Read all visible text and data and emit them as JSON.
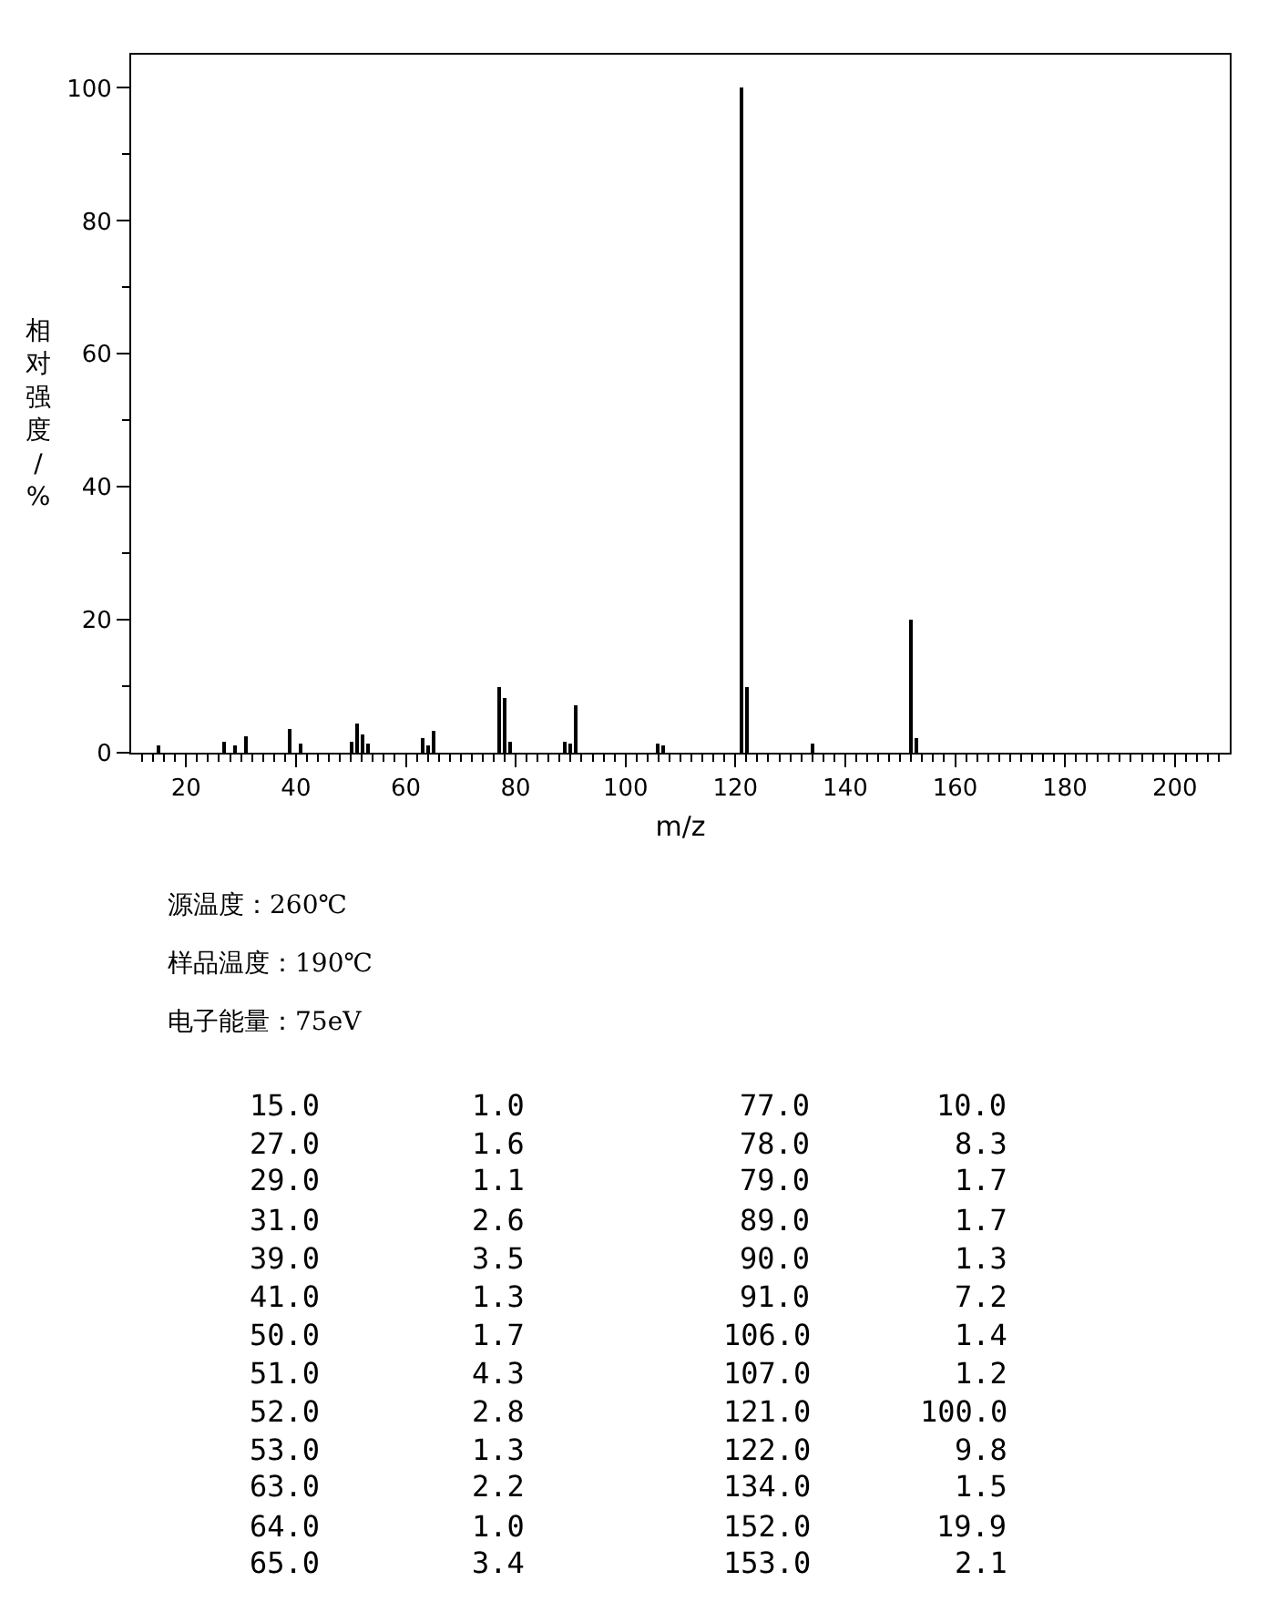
{
  "chart_data": {
    "type": "bar",
    "x": [
      15,
      27,
      29,
      31,
      39,
      41,
      50,
      51,
      52,
      53,
      63,
      64,
      65,
      77,
      78,
      79,
      89,
      90,
      91,
      106,
      107,
      121,
      122,
      134,
      152,
      153
    ],
    "values": [
      1.0,
      1.6,
      1.1,
      2.6,
      3.5,
      1.3,
      1.7,
      4.3,
      2.8,
      1.3,
      2.2,
      1.0,
      3.4,
      10.0,
      8.3,
      1.7,
      1.7,
      1.3,
      7.2,
      1.4,
      1.2,
      100.0,
      9.8,
      1.5,
      19.9,
      2.1
    ],
    "color": "#000000",
    "xlabel": "m/z",
    "ylabel": "相对强度/%",
    "xlim": [
      10,
      210
    ],
    "ylim": [
      0,
      105
    ],
    "xticks": [
      20,
      40,
      60,
      80,
      100,
      120,
      140,
      160,
      180,
      200,
      {
        "value": 12,
        "label": null
      },
      {
        "value": 14,
        "label": null
      },
      {
        "value": 16,
        "label": null
      },
      {
        "value": 18,
        "label": null
      },
      {
        "value": 22,
        "label": null
      },
      {
        "value": 24,
        "label": null
      },
      {
        "value": 26,
        "label": null
      },
      {
        "value": 28,
        "label": null
      },
      {
        "value": 30,
        "label": null
      },
      {
        "value": 32,
        "label": null
      },
      {
        "value": 34,
        "label": null
      },
      {
        "value": 36,
        "label": null
      },
      {
        "value": 38,
        "label": null
      },
      {
        "value": 42,
        "label": null
      },
      {
        "value": 44,
        "label": null
      },
      {
        "value": 46,
        "label": null
      },
      {
        "value": 48,
        "label": null
      },
      {
        "value": 50,
        "label": null
      },
      {
        "value": 52,
        "label": null
      },
      {
        "value": 54,
        "label": null
      },
      {
        "value": 56,
        "label": null
      },
      {
        "value": 58,
        "label": null
      },
      {
        "value": 62,
        "label": null
      },
      {
        "value": 64,
        "label": null
      },
      {
        "value": 66,
        "label": null
      },
      {
        "value": 68,
        "label": null
      },
      {
        "value": 70,
        "label": null
      },
      {
        "value": 72,
        "label": null
      },
      {
        "value": 74,
        "label": null
      },
      {
        "value": 76,
        "label": null
      },
      {
        "value": 78,
        "label": null
      },
      {
        "value": 82,
        "label": null
      },
      {
        "value": 84,
        "label": null
      },
      {
        "value": 86,
        "label": null
      },
      {
        "value": 88,
        "label": null
      },
      {
        "value": 90,
        "label": null
      },
      {
        "value": 92,
        "label": null
      },
      {
        "value": 94,
        "label": null
      },
      {
        "value": 96,
        "label": null
      },
      {
        "value": 98,
        "label": null
      },
      {
        "value": 102,
        "label": null
      },
      {
        "value": 104,
        "label": null
      },
      {
        "value": 106,
        "label": null
      },
      {
        "value": 108,
        "label": null
      },
      {
        "value": 110,
        "label": null
      },
      {
        "value": 112,
        "label": null
      },
      {
        "value": 114,
        "label": null
      },
      {
        "value": 116,
        "label": null
      },
      {
        "value": 118,
        "label": null
      },
      {
        "value": 122,
        "label": null
      },
      {
        "value": 124,
        "label": null
      },
      {
        "value": 126,
        "label": null
      },
      {
        "value": 128,
        "label": null
      },
      {
        "value": 130,
        "label": null
      },
      {
        "value": 132,
        "label": null
      },
      {
        "value": 134,
        "label": null
      },
      {
        "value": 136,
        "label": null
      },
      {
        "value": 138,
        "label": null
      },
      {
        "value": 142,
        "label": null
      },
      {
        "value": 144,
        "label": null
      },
      {
        "value": 146,
        "label": null
      },
      {
        "value": 148,
        "label": null
      },
      {
        "value": 150,
        "label": null
      },
      {
        "value": 152,
        "label": null
      },
      {
        "value": 154,
        "label": null
      },
      {
        "value": 156,
        "label": null
      },
      {
        "value": 158,
        "label": null
      },
      {
        "value": 162,
        "label": null
      },
      {
        "value": 164,
        "label": null
      },
      {
        "value": 166,
        "label": null
      },
      {
        "value": 168,
        "label": null
      },
      {
        "value": 170,
        "label": null
      },
      {
        "value": 172,
        "label": null
      },
      {
        "value": 174,
        "label": null
      },
      {
        "value": 176,
        "label": null
      },
      {
        "value": 178,
        "label": null
      },
      {
        "value": 182,
        "label": null
      },
      {
        "value": 184,
        "label": null
      },
      {
        "value": 186,
        "label": null
      },
      {
        "value": 188,
        "label": null
      },
      {
        "value": 190,
        "label": null
      },
      {
        "value": 192,
        "label": null
      },
      {
        "value": 194,
        "label": null
      },
      {
        "value": 196,
        "label": null
      },
      {
        "value": 198,
        "label": null
      },
      {
        "value": 202,
        "label": null
      },
      {
        "value": 204,
        "label": null
      },
      {
        "value": 206,
        "label": null
      },
      {
        "value": 208,
        "label": null
      }
    ],
    "yticks": [
      0,
      20,
      40,
      60,
      80,
      100,
      {
        "value": 10,
        "label": null
      },
      {
        "value": 30,
        "label": null
      },
      {
        "value": 50,
        "label": null
      },
      {
        "value": 70,
        "label": null
      },
      {
        "value": 90,
        "label": null
      }
    ],
    "annotations": [
      "源温度：260℃",
      "样品温度：190℃",
      "电子能量：75eV",
      "15.0",
      "1.0",
      "77.0",
      "10.0",
      "27.0",
      "1.6",
      "78.0",
      "8.3",
      "29.0",
      "1.1",
      "79.0",
      "1.7",
      "31.0",
      "2.6",
      "89.0",
      "1.7",
      "39.0",
      "3.5",
      "90.0",
      "1.3",
      "41.0",
      "1.3",
      "91.0",
      "7.2",
      "50.0",
      "1.7",
      "106.0",
      "1.4",
      "51.0",
      "4.3",
      "107.0",
      "1.2",
      "52.0",
      "2.8",
      "121.0",
      "100.0",
      "53.0",
      "1.3",
      "122.0",
      "9.8",
      "63.0",
      "2.2",
      "134.0",
      "1.5",
      "64.0",
      "1.0",
      "152.0",
      "19.9",
      "65.0",
      "3.4",
      "153.0",
      "2.1"
    ]
  }
}
